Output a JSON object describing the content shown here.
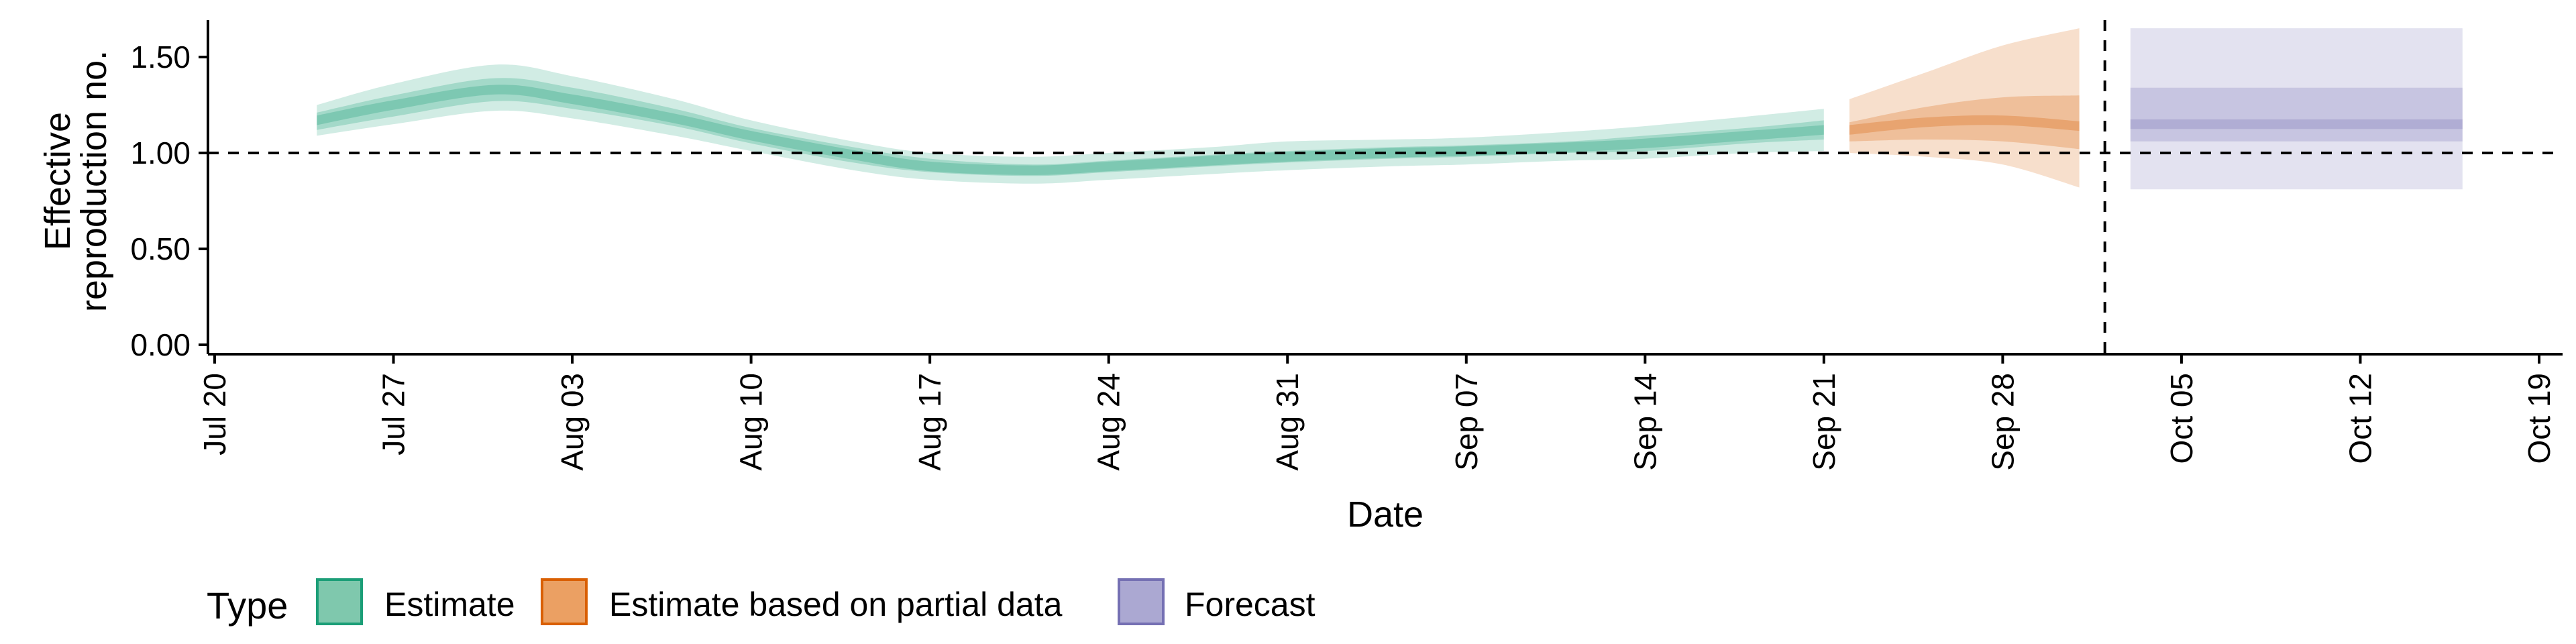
{
  "chart_data": {
    "type": "area",
    "xlabel": "Date",
    "ylabel_lines": [
      "Effective",
      "reproduction no."
    ],
    "ylim": [
      0,
      1.72
    ],
    "y_ticks": [
      {
        "value": 0.0,
        "label": "0.00"
      },
      {
        "value": 0.5,
        "label": "0.50"
      },
      {
        "value": 1.0,
        "label": "1.00"
      },
      {
        "value": 1.5,
        "label": "1.50"
      }
    ],
    "x_ticks": [
      {
        "date": "2020-07-20",
        "label": "Jul 20"
      },
      {
        "date": "2020-07-27",
        "label": "Jul 27"
      },
      {
        "date": "2020-08-03",
        "label": "Aug 03"
      },
      {
        "date": "2020-08-10",
        "label": "Aug 10"
      },
      {
        "date": "2020-08-17",
        "label": "Aug 17"
      },
      {
        "date": "2020-08-24",
        "label": "Aug 24"
      },
      {
        "date": "2020-08-31",
        "label": "Aug 31"
      },
      {
        "date": "2020-09-07",
        "label": "Sep 07"
      },
      {
        "date": "2020-09-14",
        "label": "Sep 14"
      },
      {
        "date": "2020-09-21",
        "label": "Sep 21"
      },
      {
        "date": "2020-09-28",
        "label": "Sep 28"
      },
      {
        "date": "2020-10-05",
        "label": "Oct 05"
      },
      {
        "date": "2020-10-12",
        "label": "Oct 12"
      },
      {
        "date": "2020-10-19",
        "label": "Oct 19"
      }
    ],
    "xlim": [
      "2020-07-19",
      "2020-10-20"
    ],
    "reference_line_y": 1.0,
    "reference_line_date": "2020-10-02",
    "legend": {
      "title": "Type",
      "position": "bottom-left",
      "entries": [
        {
          "label": "Estimate",
          "fill": "#7FC8AD",
          "stroke": "#1B9E77"
        },
        {
          "label": "Estimate based on partial data",
          "fill": "#EBA063",
          "stroke": "#D95F02"
        },
        {
          "label": "Forecast",
          "fill": "#ABA8D2",
          "stroke": "#7570B3"
        }
      ]
    },
    "series": [
      {
        "type": "Estimate",
        "color": "#1B9E77",
        "points": [
          {
            "date": "2020-07-24",
            "median": 1.17,
            "lo50": 1.12,
            "hi50": 1.21,
            "lo90": 1.09,
            "hi90": 1.25
          },
          {
            "date": "2020-07-27",
            "median": 1.25,
            "lo50": 1.19,
            "hi50": 1.3,
            "lo90": 1.15,
            "hi90": 1.36
          },
          {
            "date": "2020-07-31",
            "median": 1.33,
            "lo50": 1.27,
            "hi50": 1.39,
            "lo90": 1.22,
            "hi90": 1.46
          },
          {
            "date": "2020-08-03",
            "median": 1.28,
            "lo50": 1.23,
            "hi50": 1.34,
            "lo90": 1.18,
            "hi90": 1.4
          },
          {
            "date": "2020-08-07",
            "median": 1.18,
            "lo50": 1.14,
            "hi50": 1.23,
            "lo90": 1.09,
            "hi90": 1.28
          },
          {
            "date": "2020-08-10",
            "median": 1.09,
            "lo50": 1.05,
            "hi50": 1.13,
            "lo90": 1.01,
            "hi90": 1.17
          },
          {
            "date": "2020-08-14",
            "median": 0.99,
            "lo50": 0.95,
            "hi50": 1.03,
            "lo90": 0.91,
            "hi90": 1.06
          },
          {
            "date": "2020-08-17",
            "median": 0.93,
            "lo50": 0.9,
            "hi50": 0.97,
            "lo90": 0.86,
            "hi90": 1.0
          },
          {
            "date": "2020-08-21",
            "median": 0.91,
            "lo50": 0.88,
            "hi50": 0.94,
            "lo90": 0.84,
            "hi90": 0.98
          },
          {
            "date": "2020-08-24",
            "median": 0.93,
            "lo50": 0.9,
            "hi50": 0.96,
            "lo90": 0.86,
            "hi90": 1.0
          },
          {
            "date": "2020-08-28",
            "median": 0.96,
            "lo50": 0.93,
            "hi50": 0.99,
            "lo90": 0.89,
            "hi90": 1.03
          },
          {
            "date": "2020-08-31",
            "median": 0.98,
            "lo50": 0.95,
            "hi50": 1.01,
            "lo90": 0.91,
            "hi90": 1.06
          },
          {
            "date": "2020-09-04",
            "median": 1.0,
            "lo50": 0.97,
            "hi50": 1.03,
            "lo90": 0.93,
            "hi90": 1.07
          },
          {
            "date": "2020-09-07",
            "median": 1.01,
            "lo50": 0.98,
            "hi50": 1.04,
            "lo90": 0.94,
            "hi90": 1.08
          },
          {
            "date": "2020-09-11",
            "median": 1.03,
            "lo50": 1.0,
            "hi50": 1.06,
            "lo90": 0.96,
            "hi90": 1.11
          },
          {
            "date": "2020-09-14",
            "median": 1.05,
            "lo50": 1.01,
            "hi50": 1.09,
            "lo90": 0.97,
            "hi90": 1.14
          },
          {
            "date": "2020-09-18",
            "median": 1.09,
            "lo50": 1.05,
            "hi50": 1.13,
            "lo90": 1.0,
            "hi90": 1.19
          },
          {
            "date": "2020-09-21",
            "median": 1.12,
            "lo50": 1.07,
            "hi50": 1.17,
            "lo90": 1.01,
            "hi90": 1.23
          }
        ]
      },
      {
        "type": "Estimate based on partial data",
        "color": "#D95F02",
        "points": [
          {
            "date": "2020-09-22",
            "median": 1.12,
            "lo50": 1.06,
            "hi50": 1.16,
            "lo90": 1.0,
            "hi90": 1.28
          },
          {
            "date": "2020-09-25",
            "median": 1.16,
            "lo50": 1.07,
            "hi50": 1.24,
            "lo90": 0.98,
            "hi90": 1.42
          },
          {
            "date": "2020-09-28",
            "median": 1.17,
            "lo50": 1.06,
            "hi50": 1.29,
            "lo90": 0.94,
            "hi90": 1.56
          },
          {
            "date": "2020-10-01",
            "median": 1.14,
            "lo50": 1.02,
            "hi50": 1.3,
            "lo90": 0.82,
            "hi90": 1.65
          }
        ]
      },
      {
        "type": "Forecast",
        "color": "#7570B3",
        "points": [
          {
            "date": "2020-10-03",
            "median": 1.15,
            "lo50": 1.06,
            "hi50": 1.34,
            "lo90": 0.81,
            "hi90": 1.65
          },
          {
            "date": "2020-10-16",
            "median": 1.15,
            "lo50": 1.06,
            "hi50": 1.34,
            "lo90": 0.81,
            "hi90": 1.65
          }
        ]
      }
    ]
  }
}
